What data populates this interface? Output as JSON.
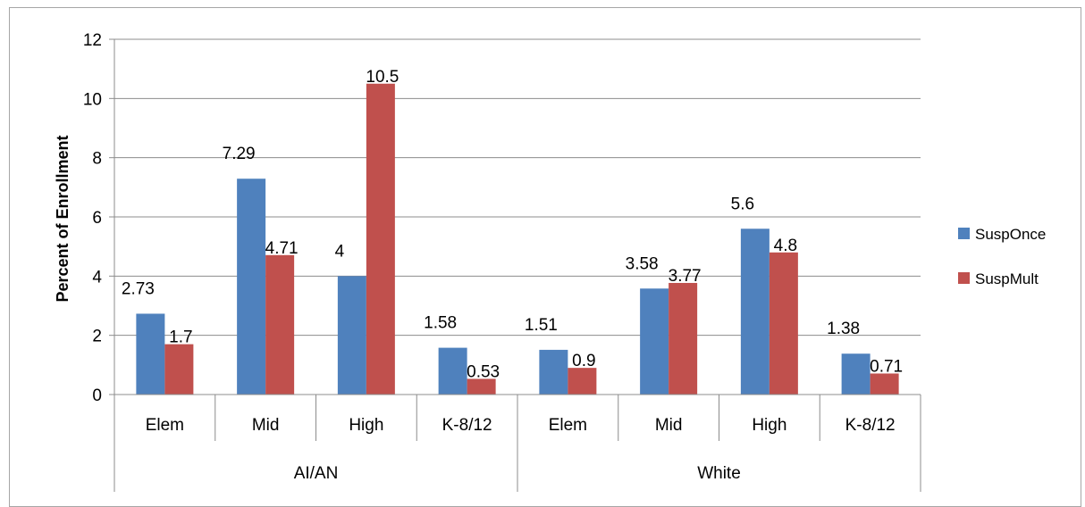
{
  "chart_data": {
    "type": "bar",
    "title": "",
    "xlabel": "",
    "ylabel": "Percent of Enrollment",
    "ylim": [
      0,
      12
    ],
    "yticks": [
      0,
      2,
      4,
      6,
      8,
      10,
      12
    ],
    "grid": true,
    "legend_position": "right",
    "groups": [
      {
        "name": "AI/AN",
        "categories": [
          "Elem",
          "Mid",
          "High",
          "K-8/12"
        ]
      },
      {
        "name": "White",
        "categories": [
          "Elem",
          "Mid",
          "High",
          "K-8/12"
        ]
      }
    ],
    "series": [
      {
        "name": "SuspOnce",
        "color": "#4f81bd",
        "values": [
          2.73,
          7.29,
          4,
          1.58,
          1.51,
          3.58,
          5.6,
          1.38
        ],
        "labels": [
          "2.73",
          "7.29",
          "4",
          "1.58",
          "1.51",
          "3.58",
          "5.6",
          "1.38"
        ]
      },
      {
        "name": "SuspMult",
        "color": "#c0504d",
        "values": [
          1.7,
          4.71,
          10.5,
          0.53,
          0.9,
          3.77,
          4.8,
          0.71
        ],
        "labels": [
          "1.7",
          "4.71",
          "10.5",
          "0.53",
          "0.9",
          "3.77",
          "4.8",
          "0.71"
        ]
      }
    ]
  }
}
